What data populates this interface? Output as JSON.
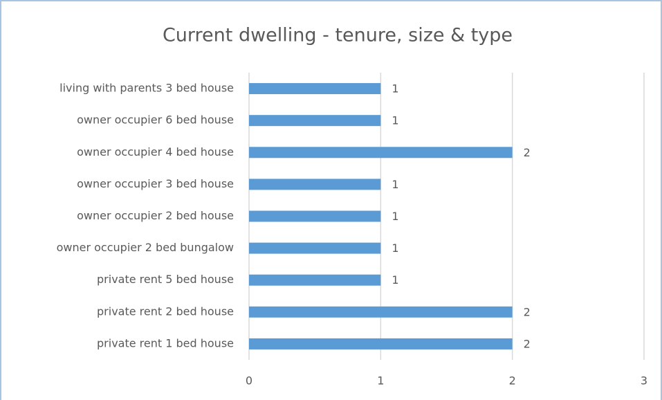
{
  "chart_data": {
    "type": "bar",
    "orientation": "horizontal",
    "title": "Current dwelling - tenure, size & type",
    "categories": [
      "living with parents 3 bed house",
      "owner occupier 6 bed house",
      "owner occupier 4 bed house",
      "owner occupier 3 bed house",
      "owner occupier 2 bed house",
      "owner occupier 2 bed bungalow",
      "private rent 5 bed house",
      "private rent 2 bed house",
      "private rent 1 bed house"
    ],
    "values": [
      1,
      1,
      2,
      1,
      1,
      1,
      1,
      2,
      2
    ],
    "color": "#5b9bd5",
    "xlim": [
      0,
      3
    ],
    "xticks": [
      0,
      1,
      2,
      3
    ],
    "grid": true
  }
}
